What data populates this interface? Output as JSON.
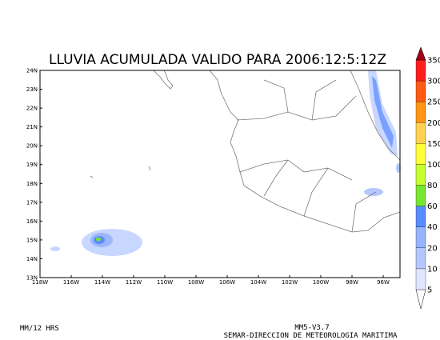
{
  "title": "LLUVIA ACUMULADA VALIDO PARA  2006:12:5:12Z",
  "lat_labels": [
    "24N",
    "23N",
    "22N",
    "21N",
    "20N",
    "19N",
    "18N",
    "17N",
    "16N",
    "15N",
    "14N",
    "13N"
  ],
  "lon_labels": [
    "118W",
    "116W",
    "114W",
    "112W",
    "110W",
    "108W",
    "106W",
    "104W",
    "102W",
    "100W",
    "98W",
    "96W"
  ],
  "colorbar": {
    "levels": [
      5,
      10,
      20,
      40,
      60,
      80,
      100,
      150,
      200,
      250,
      300,
      350
    ],
    "colors": [
      "#ffffff",
      "#e1e6ff",
      "#b4c8ff",
      "#96b4ff",
      "#5a8cff",
      "#78e632",
      "#c8ff32",
      "#ffff3c",
      "#ffd250",
      "#ff9614",
      "#ff5a14",
      "#ff1e1e",
      "#a0001e"
    ]
  },
  "footer": {
    "left": "MM/12 HRS",
    "model": "MM5-V3.7",
    "credit": "SEMAR-DIRECCION DE METEOROLOGIA MARITIMA"
  }
}
